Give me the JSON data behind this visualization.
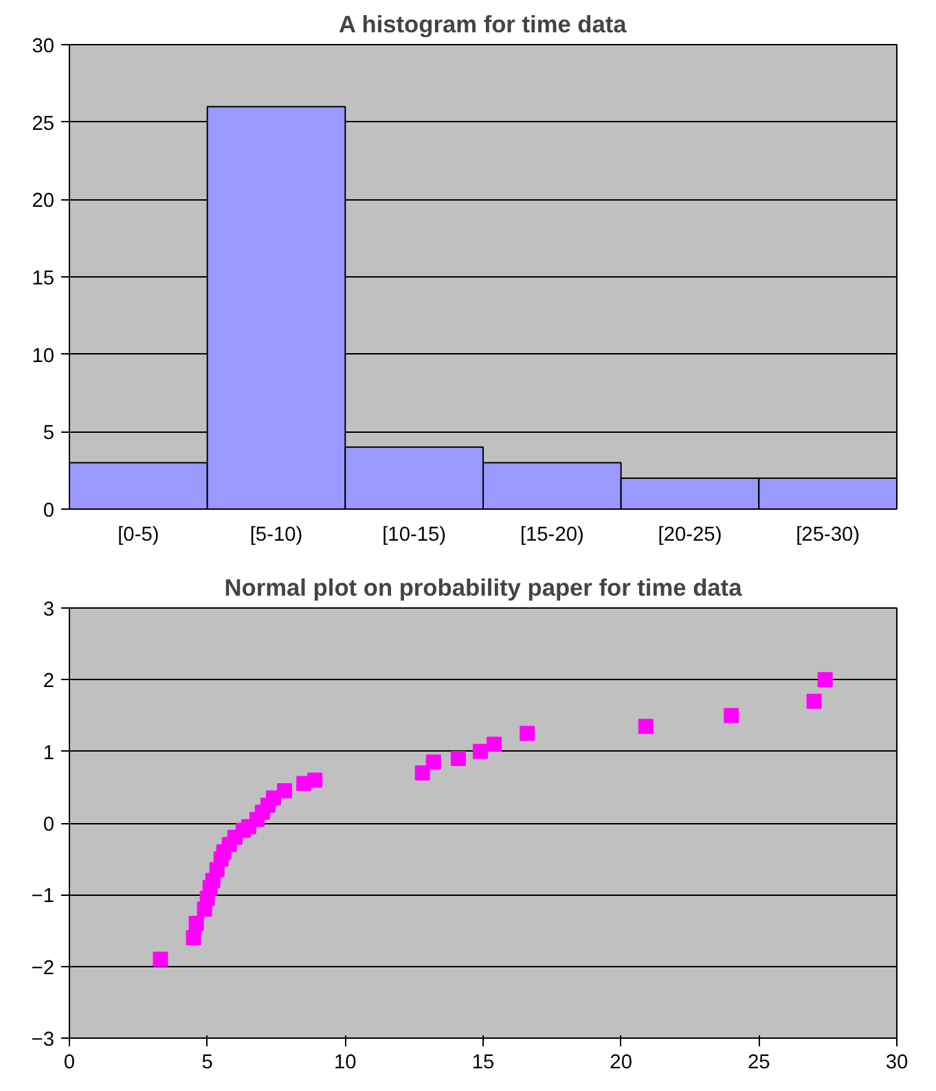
{
  "chart_data": [
    {
      "type": "bar",
      "title": "A histogram for time data",
      "categories": [
        "[0-5)",
        "[5-10)",
        "[10-15)",
        "[15-20)",
        "[20-25)",
        "[25-30)"
      ],
      "values": [
        3,
        26,
        4,
        3,
        2,
        2
      ],
      "color": "#9999ff",
      "ylim": [
        0,
        30
      ],
      "yticks": [
        0,
        5,
        10,
        15,
        20,
        25,
        30
      ],
      "grid": "y"
    },
    {
      "type": "scatter",
      "title": "Normal plot on probability paper for time data",
      "x": [
        3.3,
        4.5,
        4.6,
        4.9,
        5.0,
        5.1,
        5.2,
        5.35,
        5.5,
        5.6,
        5.8,
        6.0,
        6.3,
        6.5,
        6.8,
        7.0,
        7.2,
        7.4,
        7.8,
        8.5,
        8.9,
        12.8,
        13.2,
        14.1,
        14.9,
        15.4,
        16.6,
        20.9,
        24.0,
        27.0,
        27.4
      ],
      "values": [
        -1.9,
        -1.6,
        -1.4,
        -1.2,
        -1.05,
        -0.9,
        -0.8,
        -0.65,
        -0.5,
        -0.4,
        -0.3,
        -0.2,
        -0.1,
        -0.05,
        0.05,
        0.15,
        0.25,
        0.35,
        0.45,
        0.55,
        0.6,
        0.7,
        0.85,
        0.9,
        1.0,
        1.1,
        1.25,
        1.35,
        1.5,
        1.7,
        2.0
      ],
      "color": "#ff00ff",
      "marker": "square",
      "xlim": [
        0,
        30
      ],
      "xticks": [
        0,
        5,
        10,
        15,
        20,
        25,
        30
      ],
      "ylim": [
        -3,
        3
      ],
      "yticks": [
        -3,
        -2,
        -1,
        0,
        1,
        2,
        3
      ],
      "grid": "y"
    }
  ]
}
